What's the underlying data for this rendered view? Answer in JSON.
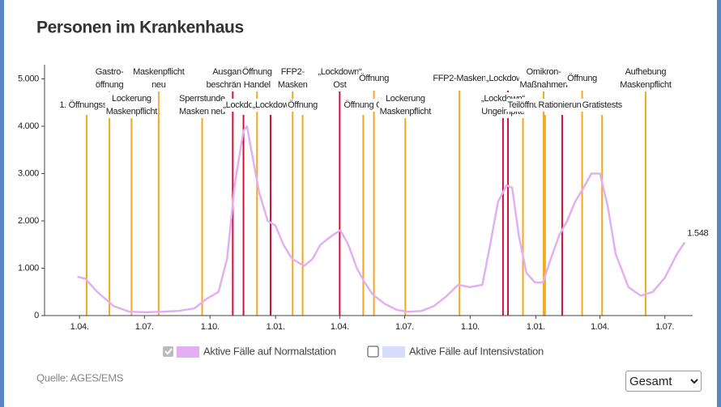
{
  "chart_data": {
    "type": "line",
    "title": "Personen im Krankenhaus",
    "x": [
      -3,
      8,
      25,
      48,
      70,
      93,
      116,
      139,
      161,
      178,
      195,
      207,
      218,
      230,
      235,
      241,
      252,
      264,
      275,
      286,
      298,
      315,
      327,
      338,
      355,
      366,
      377,
      389,
      400,
      411,
      428,
      445,
      462,
      480,
      497,
      514,
      531,
      548,
      565,
      576,
      587,
      599,
      607,
      616,
      627,
      639,
      650,
      661,
      673,
      684,
      695,
      707,
      718,
      730,
      741,
      752,
      770,
      787,
      804,
      821,
      838,
      849
    ],
    "series": [
      {
        "name": "Aktive Fälle auf Normalstation",
        "color": "#e2b0f2",
        "visible": true,
        "values": [
          820,
          780,
          500,
          200,
          80,
          70,
          80,
          100,
          150,
          350,
          500,
          1200,
          2800,
          3900,
          4000,
          3500,
          2600,
          2000,
          1900,
          1500,
          1200,
          1050,
          1200,
          1500,
          1700,
          1800,
          1500,
          1000,
          700,
          450,
          250,
          120,
          80,
          100,
          200,
          400,
          650,
          600,
          650,
          1500,
          2400,
          2750,
          2700,
          1700,
          900,
          700,
          700,
          1200,
          1700,
          2000,
          2400,
          2700,
          3000,
          3000,
          2300,
          1300,
          600,
          420,
          500,
          800,
          1300,
          1548
        ],
        "value_labels": [
          null,
          null,
          null,
          null,
          null,
          null,
          null,
          null,
          null,
          null,
          null,
          null,
          null,
          null,
          null,
          null,
          null,
          null,
          null,
          null,
          null,
          null,
          null,
          null,
          null,
          null,
          null,
          null,
          null,
          null,
          null,
          null,
          null,
          null,
          null,
          null,
          null,
          null,
          null,
          null,
          null,
          null,
          null,
          null,
          null,
          null,
          null,
          null,
          null,
          null,
          null,
          null,
          null,
          null,
          null,
          null,
          null,
          null,
          null,
          null,
          null,
          "1.548"
        ]
      },
      {
        "name": "Aktive Fälle auf Intensivstation",
        "color": "#d9dcfb",
        "visible": false
      }
    ],
    "xlim": [
      -49,
      860
    ],
    "xticks": [
      {
        "value": 0,
        "label": "1.04."
      },
      {
        "value": 91,
        "label": "1.07."
      },
      {
        "value": 183,
        "label": "1.10."
      },
      {
        "value": 275,
        "label": "1.01."
      },
      {
        "value": 365,
        "label": "1.04."
      },
      {
        "value": 456,
        "label": "1.07."
      },
      {
        "value": 548,
        "label": "1.10."
      },
      {
        "value": 640,
        "label": "1.01."
      },
      {
        "value": 730,
        "label": "1.04."
      },
      {
        "value": 821,
        "label": "1.07."
      }
    ],
    "ylim": [
      0,
      5300
    ],
    "yticks": [
      0,
      {
        "value": 1000,
        "label": "1.000"
      },
      {
        "value": 2000,
        "label": "2.000"
      },
      {
        "value": 3000,
        "label": "3.000"
      },
      {
        "value": 4000,
        "label": "4.000"
      },
      {
        "value": 5000,
        "label": "5.000"
      }
    ],
    "events": [
      {
        "x": 10,
        "color": "#f5a623",
        "label": [
          "1. Öffnungsstu"
        ]
      },
      {
        "x": 42,
        "color": "#f5a623",
        "label": [
          "Gastro-",
          "öffnung"
        ]
      },
      {
        "x": 73,
        "color": "#f5a623",
        "label": [
          "Lockerung",
          "Maskenpflicht"
        ]
      },
      {
        "x": 111,
        "color": "#f5a623",
        "label": [
          "Maskenpflicht",
          "neu"
        ]
      },
      {
        "x": 172,
        "color": "#f5a623",
        "label": [
          "Sperrstunde",
          "Masken neu"
        ]
      },
      {
        "x": 215,
        "color": "#d0103a",
        "label": [
          "Ausgangs-",
          "beschränkung"
        ]
      },
      {
        "x": 230,
        "color": "#d0103a",
        "label": [
          "„Lockdown"
        ]
      },
      {
        "x": 249,
        "color": "#f5a623",
        "label": [
          "Öffnung",
          "Handel"
        ]
      },
      {
        "x": 268,
        "color": "#d0103a",
        "label": [
          "„Lockdow"
        ]
      },
      {
        "x": 299,
        "color": "#f5a623",
        "label": [
          "FFP2-",
          "Masken"
        ]
      },
      {
        "x": 313,
        "color": "#f5a623",
        "label": [
          "Öffnung"
        ]
      },
      {
        "x": 365,
        "color": "#d0103a",
        "label": [
          "„Lockdown“",
          "Ost"
        ]
      },
      {
        "x": 398,
        "color": "#f5a623",
        "label": [
          "Öffnung O"
        ]
      },
      {
        "x": 413,
        "color": "#f5a623",
        "label": [
          "Öffnung"
        ]
      },
      {
        "x": 457,
        "color": "#f5a623",
        "label": [
          "Lockerung",
          "Maskenpflicht"
        ]
      },
      {
        "x": 533,
        "color": "#f5a623",
        "label": [
          "FFP2-Masken"
        ]
      },
      {
        "x": 594,
        "color": "#d0103a",
        "label": [
          "„Lockdown“",
          "Ungeimpfte"
        ]
      },
      {
        "x": 601,
        "color": "#d0103a",
        "label": [
          "„Lockdown“"
        ]
      },
      {
        "x": 622,
        "color": "#f5a623",
        "label": [
          "Teilöffnu"
        ]
      },
      {
        "x": 651,
        "color": "#f5a623",
        "label": [
          "Omikron-",
          "Maßnahmen"
        ]
      },
      {
        "x": 653,
        "color": "#f5a623",
        "label": [
          "Imp"
        ]
      },
      {
        "x": 677,
        "color": "#d0103a",
        "label": [
          "Rationierung"
        ]
      },
      {
        "x": 705,
        "color": "#f5a623",
        "label": [
          "Öffnung"
        ]
      },
      {
        "x": 733,
        "color": "#f5a623",
        "label": [
          "Gratistests"
        ]
      },
      {
        "x": 794,
        "color": "#f5a623",
        "label": [
          "Aufhebung",
          "Maskenpflicht"
        ]
      }
    ]
  },
  "source": "Quelle: AGES/EMS",
  "range_select": "Gesamt"
}
